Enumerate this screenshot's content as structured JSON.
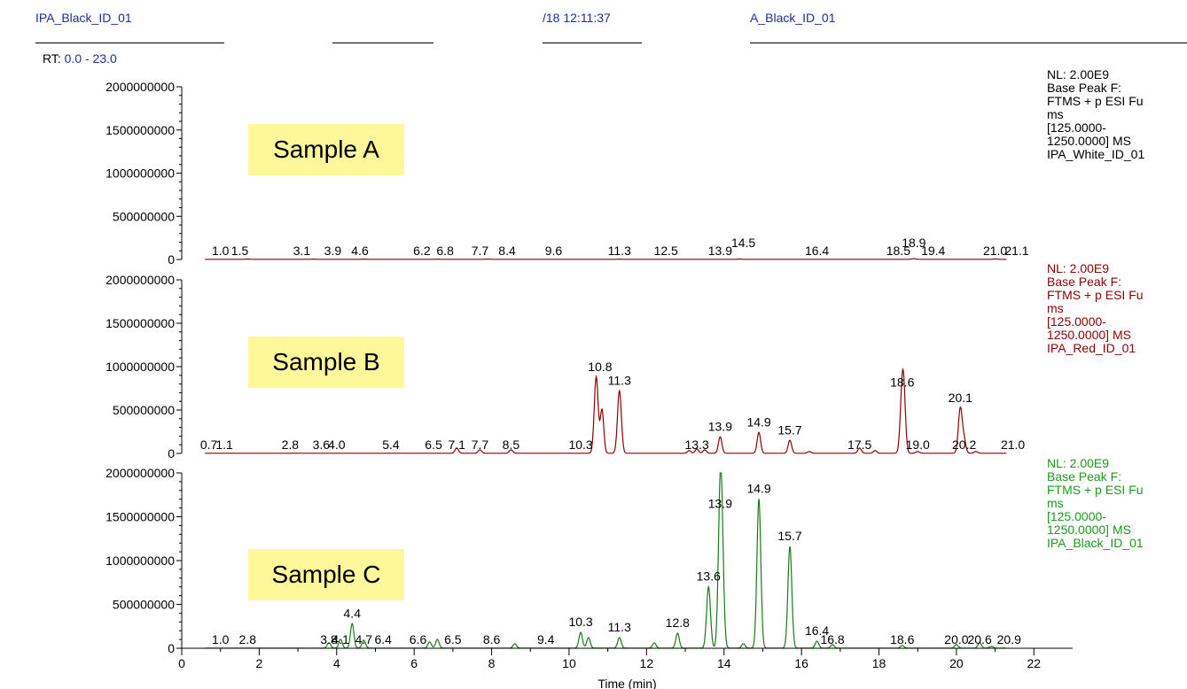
{
  "header": {
    "file_left": "IPA_Black_ID_01",
    "timestamp": "/18 12:11:37",
    "file_right": "A_Black_ID_01"
  },
  "rt_label": "RT:",
  "rt_range": "0.0 - 23.0",
  "chart_data": {
    "type": "line",
    "xlabel": "Time (min)",
    "xlim": [
      0,
      23
    ],
    "x_ticks": [
      0,
      2,
      4,
      6,
      8,
      10,
      12,
      14,
      16,
      18,
      20,
      22
    ],
    "ylim": [
      0,
      2000000000
    ],
    "y_ticks": [
      0,
      500000000,
      1000000000,
      1500000000,
      2000000000
    ],
    "y_tick_labels": [
      "0",
      "500000000",
      "1000000000",
      "1500000000",
      "2000000000"
    ],
    "series": [
      {
        "name": "Sample A",
        "color": "#8b0000",
        "info": [
          "NL: 2.00E9",
          "Base Peak F:",
          "FTMS + p ESI Fu",
          "ms",
          "[125.0000-",
          "1250.0000]  MS",
          "IPA_White_ID_01"
        ],
        "info_color": "#000000",
        "peaks": [
          [
            1.7,
            3000000
          ],
          [
            3.4,
            2000000
          ],
          [
            4.7,
            3000000
          ],
          [
            6.6,
            2000000
          ],
          [
            7.9,
            3000000
          ],
          [
            11.3,
            2000000
          ],
          [
            14.4,
            4000000
          ],
          [
            18.9,
            8000000
          ],
          [
            21.0,
            5000000
          ]
        ],
        "labels": [
          {
            "t": 1.0,
            "text": "1.0"
          },
          {
            "t": 1.5,
            "text": "1.5"
          },
          {
            "t": 3.1,
            "text": "3.1"
          },
          {
            "t": 3.9,
            "text": "3.9"
          },
          {
            "t": 4.6,
            "text": "4.6"
          },
          {
            "t": 6.2,
            "text": "6.2"
          },
          {
            "t": 6.8,
            "text": "6.8"
          },
          {
            "t": 7.7,
            "text": "7.7"
          },
          {
            "t": 8.4,
            "text": "8.4"
          },
          {
            "t": 9.6,
            "text": "9.6"
          },
          {
            "t": 11.3,
            "text": "11.3"
          },
          {
            "t": 12.5,
            "text": "12.5"
          },
          {
            "t": 13.9,
            "text": "13.9"
          },
          {
            "t": 14.5,
            "text": "14.5",
            "raised": true
          },
          {
            "t": 16.4,
            "text": "16.4"
          },
          {
            "t": 18.5,
            "text": "18.5"
          },
          {
            "t": 18.9,
            "text": "18.9",
            "raised": true
          },
          {
            "t": 19.4,
            "text": "19.4"
          },
          {
            "t": 21.0,
            "text": "21.0"
          },
          {
            "t": 21.1,
            "text": "21.1",
            "right": true
          }
        ]
      },
      {
        "name": "Sample B",
        "color": "#8b0000",
        "info": [
          "NL: 2.00E9",
          "Base Peak F:",
          "FTMS + p ESI Fu",
          "ms",
          "[125.0000-",
          "1250.0000]  MS",
          "IPA_Red_ID_01"
        ],
        "info_color": "#8b0000",
        "peaks": [
          [
            7.1,
            60000000
          ],
          [
            7.7,
            40000000
          ],
          [
            8.5,
            40000000
          ],
          [
            10.7,
            880000000
          ],
          [
            10.85,
            500000000
          ],
          [
            11.3,
            720000000
          ],
          [
            13.1,
            30000000
          ],
          [
            13.3,
            50000000
          ],
          [
            13.5,
            40000000
          ],
          [
            13.9,
            190000000
          ],
          [
            14.9,
            240000000
          ],
          [
            15.7,
            150000000
          ],
          [
            16.2,
            20000000
          ],
          [
            17.5,
            60000000
          ],
          [
            17.9,
            30000000
          ],
          [
            18.6,
            700000000
          ],
          [
            18.65,
            400000000
          ],
          [
            19.0,
            20000000
          ],
          [
            20.1,
            520000000
          ],
          [
            20.2,
            140000000
          ],
          [
            20.5,
            20000000
          ]
        ],
        "labels": [
          {
            "t": 0.7,
            "text": "0.7"
          },
          {
            "t": 1.1,
            "text": "1.1"
          },
          {
            "t": 2.8,
            "text": "2.8"
          },
          {
            "t": 3.6,
            "text": "3.6"
          },
          {
            "t": 4.0,
            "text": "4.0"
          },
          {
            "t": 5.4,
            "text": "5.4"
          },
          {
            "t": 6.5,
            "text": "6.5"
          },
          {
            "t": 7.1,
            "text": "7.1"
          },
          {
            "t": 7.7,
            "text": "7.7"
          },
          {
            "t": 8.5,
            "text": "8.5"
          },
          {
            "t": 10.3,
            "text": "10.3"
          },
          {
            "t": 10.8,
            "text": "10.8",
            "v": 880000000
          },
          {
            "t": 11.3,
            "text": "11.3",
            "v": 720000000
          },
          {
            "t": 13.3,
            "text": "13.3"
          },
          {
            "t": 13.9,
            "text": "13.9",
            "v": 190000000
          },
          {
            "t": 14.9,
            "text": "14.9",
            "v": 240000000
          },
          {
            "t": 15.7,
            "text": "15.7",
            "v": 150000000
          },
          {
            "t": 17.5,
            "text": "17.5"
          },
          {
            "t": 18.6,
            "text": "18.6",
            "v": 700000000
          },
          {
            "t": 19.0,
            "text": "19.0"
          },
          {
            "t": 20.1,
            "text": "20.1",
            "v": 520000000
          },
          {
            "t": 20.2,
            "text": "20.2"
          },
          {
            "t": 21.0,
            "text": "21.0",
            "right": true
          }
        ]
      },
      {
        "name": "Sample C",
        "color": "#1a7a1a",
        "info": [
          "NL: 2.00E9",
          "Base Peak F:",
          "FTMS + p ESI Fu",
          "ms",
          "[125.0000-",
          "1250.0000]  MS",
          "IPA_Black_ID_01"
        ],
        "info_color": "#1a9a1a",
        "peaks": [
          [
            3.8,
            60000000
          ],
          [
            4.1,
            100000000
          ],
          [
            4.4,
            280000000
          ],
          [
            4.7,
            90000000
          ],
          [
            6.4,
            70000000
          ],
          [
            6.6,
            100000000
          ],
          [
            8.6,
            50000000
          ],
          [
            10.3,
            180000000
          ],
          [
            10.5,
            120000000
          ],
          [
            11.3,
            120000000
          ],
          [
            12.2,
            60000000
          ],
          [
            12.8,
            170000000
          ],
          [
            13.6,
            700000000
          ],
          [
            13.9,
            1530000000
          ],
          [
            13.95,
            800000000
          ],
          [
            14.5,
            50000000
          ],
          [
            14.9,
            1700000000
          ],
          [
            15.7,
            1160000000
          ],
          [
            16.4,
            80000000
          ],
          [
            16.8,
            40000000
          ],
          [
            18.6,
            30000000
          ],
          [
            20.0,
            40000000
          ],
          [
            20.6,
            60000000
          ],
          [
            20.9,
            20000000
          ]
        ],
        "labels": [
          {
            "t": 1.0,
            "text": "1.0"
          },
          {
            "t": 2.8,
            "text": "2.8",
            "at": 1.7
          },
          {
            "t": 3.8,
            "text": "3.8"
          },
          {
            "t": 4.1,
            "text": "4.1"
          },
          {
            "t": 4.4,
            "text": "4.4",
            "v": 280000000
          },
          {
            "t": 4.7,
            "text": "4.7"
          },
          {
            "t": 6.4,
            "text": "6.4",
            "at": 5.2
          },
          {
            "t": 6.6,
            "text": "6.6",
            "at": 6.1
          },
          {
            "t": 6.5,
            "text": "6.5",
            "at": 7.0
          },
          {
            "t": 8.6,
            "text": "8.6",
            "at": 8.0
          },
          {
            "t": 9.4,
            "text": "9.4"
          },
          {
            "t": 10.3,
            "text": "10.3",
            "v": 180000000
          },
          {
            "t": 11.3,
            "text": "11.3",
            "v": 120000000
          },
          {
            "t": 12.8,
            "text": "12.8",
            "v": 170000000
          },
          {
            "t": 13.6,
            "text": "13.6",
            "v": 700000000
          },
          {
            "t": 13.9,
            "text": "13.9",
            "v": 1530000000
          },
          {
            "t": 14.9,
            "text": "14.9",
            "v": 1700000000
          },
          {
            "t": 15.7,
            "text": "15.7",
            "v": 1160000000
          },
          {
            "t": 16.4,
            "text": "16.4",
            "v": 80000000
          },
          {
            "t": 16.8,
            "text": "16.8"
          },
          {
            "t": 18.6,
            "text": "18.6"
          },
          {
            "t": 20.0,
            "text": "20.0"
          },
          {
            "t": 20.6,
            "text": "20.6"
          },
          {
            "t": 20.9,
            "text": "20.9",
            "right": true
          }
        ]
      }
    ]
  }
}
